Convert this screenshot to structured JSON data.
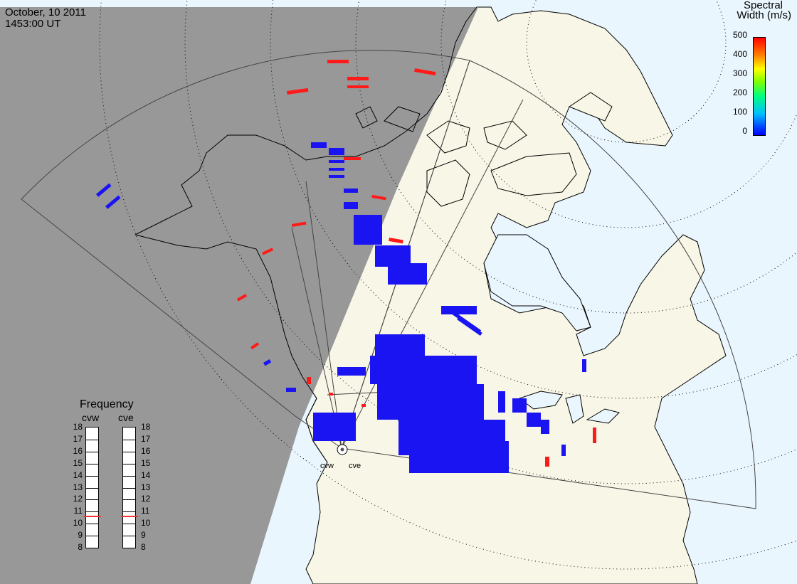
{
  "header": {
    "date": "October, 10 2011",
    "time": "1453:00 UT"
  },
  "colorbar": {
    "title_line1": "Spectral",
    "title_line2": "Width (m/s)",
    "ticks": [
      "500",
      "400",
      "300",
      "200",
      "100",
      "0"
    ],
    "min": 0,
    "max": 500
  },
  "frequency": {
    "title": "Frequency",
    "radars": [
      {
        "name": "cvw",
        "value_mhz": 10.6
      },
      {
        "name": "cve",
        "value_mhz": 10.6
      }
    ],
    "min": 8,
    "max": 18,
    "labels": [
      "18",
      "17",
      "16",
      "15",
      "14",
      "13",
      "12",
      "11",
      "10",
      "9",
      "8"
    ]
  },
  "sites": [
    {
      "name": "cvw"
    },
    {
      "name": "cve"
    }
  ],
  "colors": {
    "night": "#989898",
    "land": "#f8f6e6",
    "ocean": "#eaf6fd",
    "scatter_low": "#1a14f2",
    "scatter_high": "#ff1a1a"
  }
}
